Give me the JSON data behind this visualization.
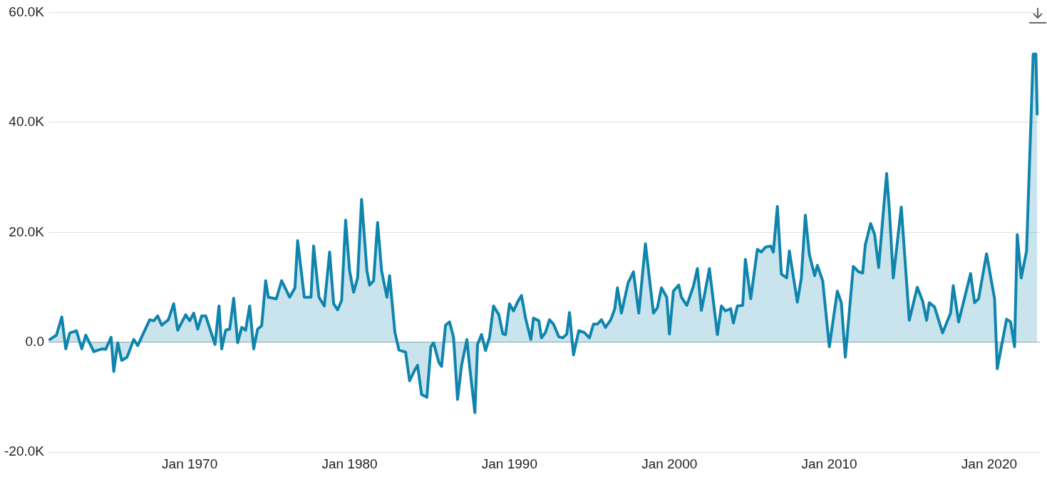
{
  "chart_data": {
    "type": "area",
    "grid": "y",
    "marker": "none",
    "line_style": "solid",
    "legend": false,
    "xlim": [
      "1961-03",
      "2023-03"
    ],
    "xticks": [
      {
        "value": "1970-01",
        "label": "Jan 1970"
      },
      {
        "value": "1980-01",
        "label": "Jan 1980"
      },
      {
        "value": "1990-01",
        "label": "Jan 1990"
      },
      {
        "value": "2000-01",
        "label": "Jan 2000"
      },
      {
        "value": "2010-01",
        "label": "Jan 2010"
      },
      {
        "value": "2020-01",
        "label": "Jan 2020"
      }
    ],
    "ylim": [
      -20000,
      60000
    ],
    "yticks": [
      {
        "value": -20000,
        "label": "-20.0K"
      },
      {
        "value": 0,
        "label": "0.0"
      },
      {
        "value": 20000,
        "label": "20.0K"
      },
      {
        "value": 40000,
        "label": "40.0K"
      },
      {
        "value": 60000,
        "label": "60.0K"
      }
    ],
    "series": [
      {
        "color": "#0f85ad",
        "x": [
          "1961-04",
          "1961-09",
          "1962-01",
          "1962-04",
          "1962-07",
          "1962-12",
          "1963-04",
          "1963-07",
          "1964-01",
          "1964-07",
          "1964-10",
          "1965-02",
          "1965-04",
          "1965-07",
          "1965-10",
          "1966-02",
          "1966-07",
          "1966-10",
          "1967-02",
          "1967-07",
          "1967-10",
          "1968-01",
          "1968-04",
          "1968-09",
          "1969-01",
          "1969-04",
          "1969-10",
          "1970-01",
          "1970-04",
          "1970-07",
          "1970-10",
          "1971-01",
          "1971-08",
          "1971-11",
          "1972-01",
          "1972-04",
          "1972-07",
          "1972-10",
          "1973-01",
          "1973-04",
          "1973-07",
          "1973-10",
          "1974-01",
          "1974-04",
          "1974-07",
          "1974-10",
          "1974-12",
          "1975-06",
          "1975-10",
          "1976-04",
          "1976-08",
          "1976-10",
          "1977-03",
          "1977-08",
          "1977-10",
          "1978-02",
          "1978-06",
          "1978-10",
          "1979-01",
          "1979-04",
          "1979-07",
          "1979-10",
          "1980-01",
          "1980-04",
          "1980-07",
          "1980-10",
          "1981-02",
          "1981-04",
          "1981-07",
          "1981-10",
          "1982-01",
          "1982-05",
          "1982-07",
          "1982-11",
          "1983-02",
          "1983-07",
          "1983-10",
          "1984-02",
          "1984-04",
          "1984-07",
          "1984-11",
          "1985-02",
          "1985-04",
          "1985-08",
          "1985-10",
          "1986-01",
          "1986-04",
          "1986-07",
          "1986-10",
          "1987-01",
          "1987-05",
          "1987-07",
          "1987-11",
          "1988-01",
          "1988-04",
          "1988-07",
          "1988-10",
          "1989-01",
          "1989-05",
          "1989-08",
          "1989-10",
          "1990-01",
          "1990-04",
          "1990-07",
          "1990-10",
          "1991-01",
          "1991-05",
          "1991-07",
          "1991-11",
          "1992-01",
          "1992-04",
          "1992-07",
          "1992-10",
          "1993-02",
          "1993-05",
          "1993-08",
          "1993-10",
          "1994-01",
          "1994-05",
          "1994-09",
          "1995-01",
          "1995-04",
          "1995-07",
          "1995-10",
          "1996-01",
          "1996-05",
          "1996-08",
          "1996-10",
          "1997-01",
          "1997-06",
          "1997-10",
          "1998-02",
          "1998-07",
          "1999-01",
          "1999-04",
          "1999-07",
          "1999-11",
          "2000-01",
          "2000-04",
          "2000-08",
          "2000-10",
          "2001-02",
          "2001-07",
          "2001-10",
          "2002-01",
          "2002-03",
          "2002-07",
          "2003-01",
          "2003-04",
          "2003-07",
          "2003-11",
          "2004-01",
          "2004-04",
          "2004-08",
          "2004-10",
          "2005-02",
          "2005-07",
          "2005-10",
          "2006-01",
          "2006-05",
          "2006-07",
          "2006-10",
          "2007-01",
          "2007-05",
          "2007-07",
          "2008-01",
          "2008-04",
          "2008-07",
          "2008-10",
          "2009-02",
          "2009-04",
          "2009-08",
          "2010-01",
          "2010-07",
          "2010-10",
          "2011-01",
          "2011-07",
          "2011-11",
          "2012-02",
          "2012-04",
          "2012-08",
          "2012-11",
          "2013-02",
          "2013-08",
          "2013-10",
          "2014-01",
          "2014-07",
          "2015-01",
          "2015-07",
          "2015-11",
          "2016-02",
          "2016-04",
          "2016-08",
          "2017-02",
          "2017-08",
          "2017-10",
          "2018-02",
          "2018-11",
          "2019-02",
          "2019-05",
          "2019-11",
          "2020-05",
          "2020-07",
          "2020-10",
          "2021-02",
          "2021-05",
          "2021-08",
          "2021-10",
          "2022-01",
          "2022-05",
          "2022-10",
          "2022-12",
          "2023-01"
        ],
        "values": [
          500,
          1300,
          4600,
          -1200,
          1700,
          2100,
          -1200,
          1300,
          -1700,
          -1200,
          -1300,
          900,
          -5300,
          -100,
          -3300,
          -2700,
          500,
          -600,
          1500,
          4100,
          3900,
          4800,
          3100,
          4100,
          7000,
          2200,
          5000,
          3900,
          5300,
          2400,
          4800,
          4800,
          -400,
          6600,
          -1200,
          2200,
          2400,
          8000,
          -100,
          2700,
          2200,
          6600,
          -1200,
          2400,
          3000,
          11200,
          8200,
          7900,
          11200,
          8200,
          9900,
          18500,
          8200,
          8200,
          17500,
          8200,
          6600,
          16400,
          7000,
          5900,
          7600,
          22200,
          13000,
          9100,
          11700,
          26000,
          13000,
          10400,
          11200,
          21800,
          13000,
          8200,
          12100,
          1800,
          -1400,
          -1800,
          -7000,
          -5000,
          -4200,
          -9500,
          -10000,
          -800,
          -100,
          -3700,
          -4400,
          3100,
          3700,
          900,
          -10400,
          -4200,
          500,
          -4200,
          -12800,
          -400,
          1400,
          -1500,
          900,
          6600,
          5000,
          1500,
          1400,
          7000,
          5700,
          7300,
          8500,
          4400,
          500,
          4400,
          3900,
          800,
          1800,
          4100,
          3300,
          1000,
          800,
          1500,
          5400,
          -2300,
          2100,
          1800,
          800,
          3300,
          3300,
          4100,
          2700,
          4100,
          6100,
          9900,
          5300,
          10800,
          12800,
          5300,
          17900,
          5300,
          6300,
          9900,
          8200,
          1500,
          9300,
          10400,
          8200,
          6700,
          10200,
          13400,
          5800,
          8200,
          13400,
          1400,
          6600,
          5700,
          6100,
          3500,
          6600,
          6700,
          15100,
          7900,
          16900,
          16400,
          17300,
          17500,
          16400,
          24700,
          12400,
          11700,
          16600,
          7300,
          11700,
          23100,
          16000,
          12100,
          14000,
          11200,
          -800,
          9300,
          7200,
          -2700,
          13800,
          12800,
          12600,
          17700,
          21600,
          19600,
          13600,
          30700,
          24300,
          11700,
          24600,
          4000,
          10000,
          7500,
          4000,
          7200,
          6400,
          1700,
          5300,
          10300,
          3700,
          12500,
          7200,
          7900,
          16100,
          7900,
          -4800,
          -1000,
          4200,
          3700,
          -800,
          19600,
          11700,
          16600,
          52400,
          52400,
          41500
        ]
      }
    ]
  }
}
